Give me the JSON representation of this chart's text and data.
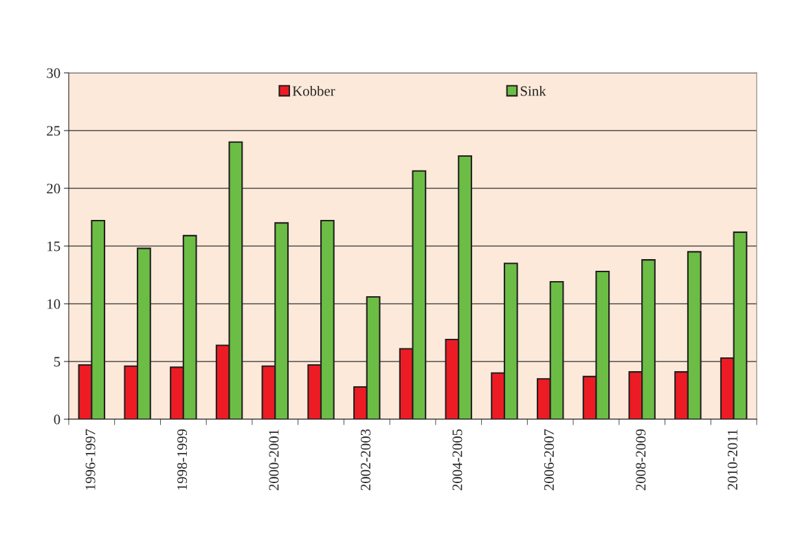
{
  "chart_data": {
    "type": "bar",
    "categories": [
      "1996-1997",
      null,
      "1998-1999",
      null,
      "2000-2001",
      null,
      "2002-2003",
      null,
      "2004-2005",
      null,
      "2006-2007",
      null,
      "2008-2009",
      null,
      "2010-2011"
    ],
    "series": [
      {
        "name": "Kobber",
        "color": "#ed1c24",
        "values": [
          4.7,
          4.6,
          4.5,
          6.4,
          4.6,
          4.7,
          2.8,
          6.1,
          6.9,
          4.0,
          3.5,
          3.7,
          4.1,
          4.1,
          5.3
        ]
      },
      {
        "name": "Sink",
        "color": "#6cbd45",
        "values": [
          17.2,
          14.8,
          15.9,
          24.0,
          17.0,
          17.2,
          10.6,
          21.5,
          22.8,
          13.5,
          11.9,
          12.8,
          13.8,
          14.5,
          16.2
        ]
      }
    ],
    "ylim": [
      0,
      30
    ],
    "yticks": [
      0,
      5,
      10,
      15,
      20,
      25,
      30
    ],
    "grid": "y",
    "legend": "top"
  }
}
